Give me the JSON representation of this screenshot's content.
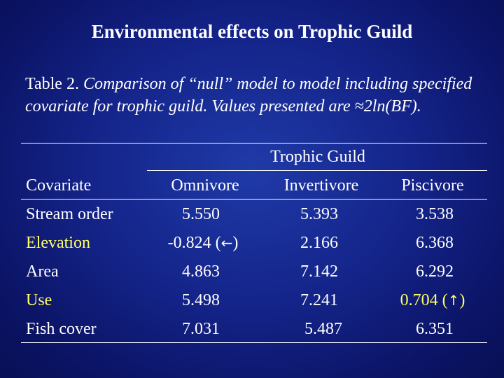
{
  "slide_title": "Environmental effects on Trophic Guild",
  "caption": {
    "label": "Table 2. ",
    "text": "Comparison of “null” model to model including specified covariate for trophic guild. Values presented are ≈2ln(BF)."
  },
  "table": {
    "group_header": "Trophic Guild",
    "columns": [
      "Covariate",
      "Omnivore",
      "Invertivore",
      "Piscivore"
    ],
    "rows": [
      {
        "covariate": "Stream order",
        "omnivore": "5.550",
        "invertivore": "5.393",
        "piscivore": "3.538",
        "highlight": false
      },
      {
        "covariate": "Elevation",
        "omnivore": "-0.824 (",
        "omnivore_arrow": "←",
        "omnivore_close": ")",
        "invertivore": "2.166",
        "piscivore": "6.368",
        "highlight": true
      },
      {
        "covariate": "Area",
        "omnivore": "4.863",
        "invertivore": "7.142",
        "piscivore": "6.292",
        "highlight": false
      },
      {
        "covariate": "Use",
        "omnivore": "5.498",
        "invertivore": "7.241",
        "piscivore": "0.704 (",
        "piscivore_arrow": "↑",
        "piscivore_close": ")",
        "highlight": true
      },
      {
        "covariate": "Fish cover",
        "omnivore": "7.031",
        "invertivore": "5.487",
        "piscivore": "6.351",
        "highlight": false
      }
    ],
    "highlight_color": "#ffff66"
  }
}
